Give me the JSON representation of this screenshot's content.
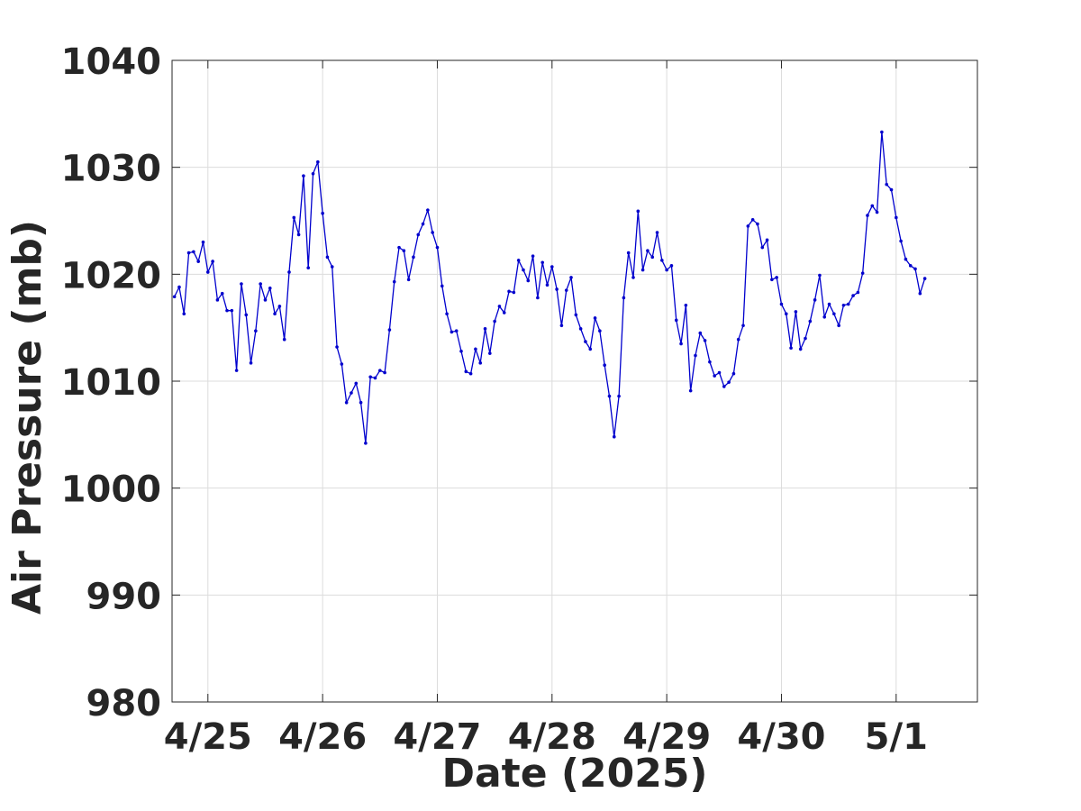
{
  "chart_data": {
    "type": "line",
    "xlabel": "Date (2025)",
    "ylabel": "Air Pressure (mb)",
    "color": "#0000cd",
    "grid": true,
    "markers": true,
    "xlim": [
      -7.5,
      161
    ],
    "ylim": [
      980,
      1040
    ],
    "xticks": [
      {
        "value": 0,
        "label": "4/25"
      },
      {
        "value": 24,
        "label": "4/26"
      },
      {
        "value": 48,
        "label": "4/27"
      },
      {
        "value": 72,
        "label": "4/28"
      },
      {
        "value": 96,
        "label": "4/29"
      },
      {
        "value": 120,
        "label": "4/30"
      },
      {
        "value": 144,
        "label": "5/1"
      }
    ],
    "yticks": [
      980,
      990,
      1000,
      1010,
      1020,
      1030,
      1040
    ],
    "x": [
      -7,
      -6,
      -5,
      -4,
      -3,
      -2,
      -1,
      0,
      1,
      2,
      3,
      4,
      5,
      6,
      7,
      8,
      9,
      10,
      11,
      12,
      13,
      14,
      15,
      16,
      17,
      18,
      19,
      20,
      21,
      22,
      23,
      24,
      25,
      26,
      27,
      28,
      29,
      30,
      31,
      32,
      33,
      34,
      35,
      36,
      37,
      38,
      39,
      40,
      41,
      42,
      43,
      44,
      45,
      46,
      47,
      48,
      49,
      50,
      51,
      52,
      53,
      54,
      55,
      56,
      57,
      58,
      59,
      60,
      61,
      62,
      63,
      64,
      65,
      66,
      67,
      68,
      69,
      70,
      71,
      72,
      73,
      74,
      75,
      76,
      77,
      78,
      79,
      80,
      81,
      82,
      83,
      84,
      85,
      86,
      87,
      88,
      89,
      90,
      91,
      92,
      93,
      94,
      95,
      96,
      97,
      98,
      99,
      100,
      101,
      102,
      103,
      104,
      105,
      106,
      107,
      108,
      109,
      110,
      111,
      112,
      113,
      114,
      115,
      116,
      117,
      118,
      119,
      120,
      121,
      122,
      123,
      124,
      125,
      126,
      127,
      128,
      129,
      130,
      131,
      132,
      133,
      134,
      135,
      136,
      137,
      138,
      139,
      140,
      141,
      142,
      143,
      144,
      145,
      146,
      147,
      148,
      149,
      150
    ],
    "values": [
      1017.9,
      1018.8,
      1016.3,
      1022.0,
      1022.1,
      1021.2,
      1023.0,
      1020.2,
      1021.2,
      1017.6,
      1018.2,
      1016.6,
      1016.6,
      1011.0,
      1019.1,
      1016.2,
      1011.7,
      1014.7,
      1019.1,
      1017.6,
      1018.7,
      1016.3,
      1017.0,
      1013.9,
      1020.2,
      1025.3,
      1023.7,
      1029.2,
      1020.6,
      1029.4,
      1030.5,
      1025.7,
      1021.6,
      1020.7,
      1013.2,
      1011.6,
      1008.0,
      1008.9,
      1009.8,
      1008.0,
      1004.2,
      1010.4,
      1010.3,
      1011.0,
      1010.8,
      1014.8,
      1019.3,
      1022.5,
      1022.2,
      1019.5,
      1021.6,
      1023.7,
      1024.7,
      1026.0,
      1023.9,
      1022.5,
      1018.9,
      1016.3,
      1014.6,
      1014.7,
      1012.8,
      1010.9,
      1010.7,
      1013.0,
      1011.7,
      1014.9,
      1012.6,
      1015.6,
      1017.0,
      1016.4,
      1018.4,
      1018.3,
      1021.3,
      1020.4,
      1019.4,
      1021.7,
      1017.8,
      1021.1,
      1019.0,
      1020.7,
      1018.6,
      1015.2,
      1018.5,
      1019.7,
      1016.2,
      1014.9,
      1013.7,
      1013.0,
      1015.9,
      1014.7,
      1011.5,
      1008.6,
      1004.8,
      1008.6,
      1017.8,
      1022.0,
      1019.7,
      1025.9,
      1020.4,
      1022.2,
      1021.6,
      1023.9,
      1021.3,
      1020.4,
      1020.8,
      1015.7,
      1013.5,
      1017.1,
      1009.1,
      1012.4,
      1014.5,
      1013.8,
      1011.8,
      1010.5,
      1010.8,
      1009.5,
      1009.9,
      1010.7,
      1013.9,
      1015.2,
      1024.5,
      1025.1,
      1024.7,
      1022.5,
      1023.2,
      1019.5,
      1019.7,
      1017.2,
      1016.3,
      1013.1,
      1016.5,
      1013.0,
      1014.0,
      1015.6,
      1017.6,
      1019.9,
      1016.0,
      1017.2,
      1016.3,
      1015.2,
      1017.1,
      1017.2,
      1018.0,
      1018.3,
      1020.1,
      1025.5,
      1026.4,
      1025.8,
      1033.3,
      1028.4,
      1027.9,
      1025.3,
      1023.1,
      1021.4,
      1020.8,
      1020.5,
      1018.2,
      1019.6
    ]
  }
}
